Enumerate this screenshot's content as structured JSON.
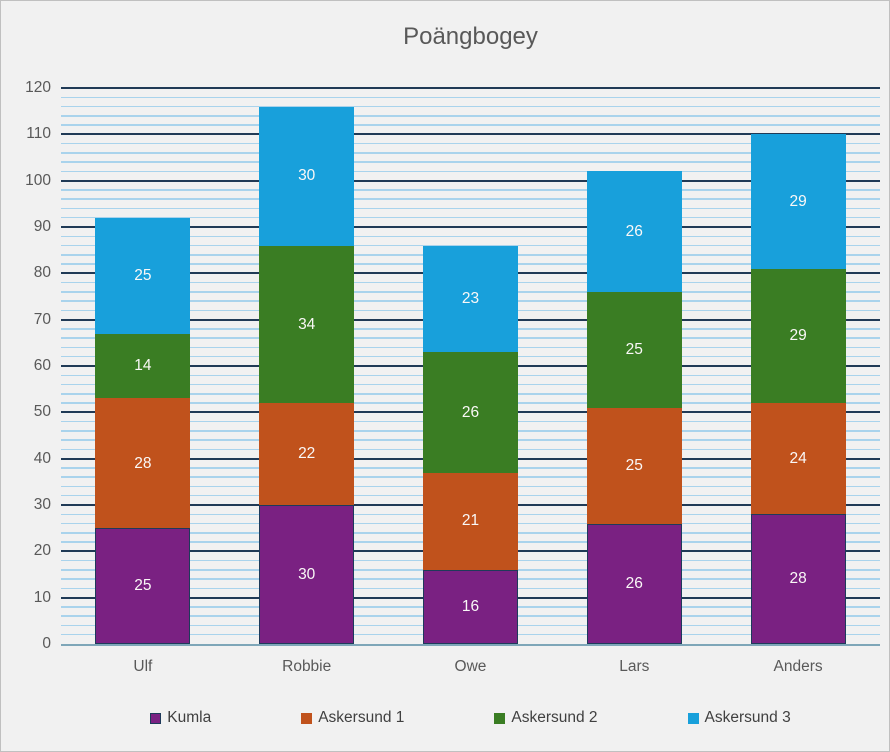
{
  "chart_data": {
    "type": "bar",
    "stacked": true,
    "title": "Poängbogey",
    "categories": [
      "Ulf",
      "Robbie",
      "Owe",
      "Lars",
      "Anders"
    ],
    "series": [
      {
        "name": "Kumla",
        "color": "#7A2182",
        "border_color": "#1E3A5A",
        "values": [
          25,
          30,
          16,
          26,
          28
        ]
      },
      {
        "name": "Askersund 1",
        "color": "#C0521C",
        "values": [
          28,
          22,
          21,
          25,
          24
        ]
      },
      {
        "name": "Askersund 2",
        "color": "#3A7D23",
        "values": [
          14,
          34,
          26,
          25,
          29
        ]
      },
      {
        "name": "Askersund 3",
        "color": "#18A0DB",
        "values": [
          25,
          30,
          23,
          26,
          29
        ]
      }
    ],
    "ylim": [
      0,
      120
    ],
    "y_major_interval": 10,
    "y_minor_interval": 2,
    "y_tick_labels": [
      "0",
      "10",
      "20",
      "30",
      "40",
      "50",
      "60",
      "70",
      "80",
      "90",
      "100",
      "110",
      "120"
    ],
    "grid": true,
    "data_labels": true,
    "legend_position": "bottom"
  },
  "colors": {
    "background": "#F1F1F1",
    "plot_background": "#F1F1F1",
    "major_gridline": "#203A56",
    "minor_gridline": "#A9D3EC",
    "axis_line": "#7EA6B8",
    "title_text": "#595959",
    "axis_text": "#595959",
    "legend_text": "#404040",
    "data_label_text": "#FAF8F7",
    "outer_border": "#C0C0C0"
  }
}
